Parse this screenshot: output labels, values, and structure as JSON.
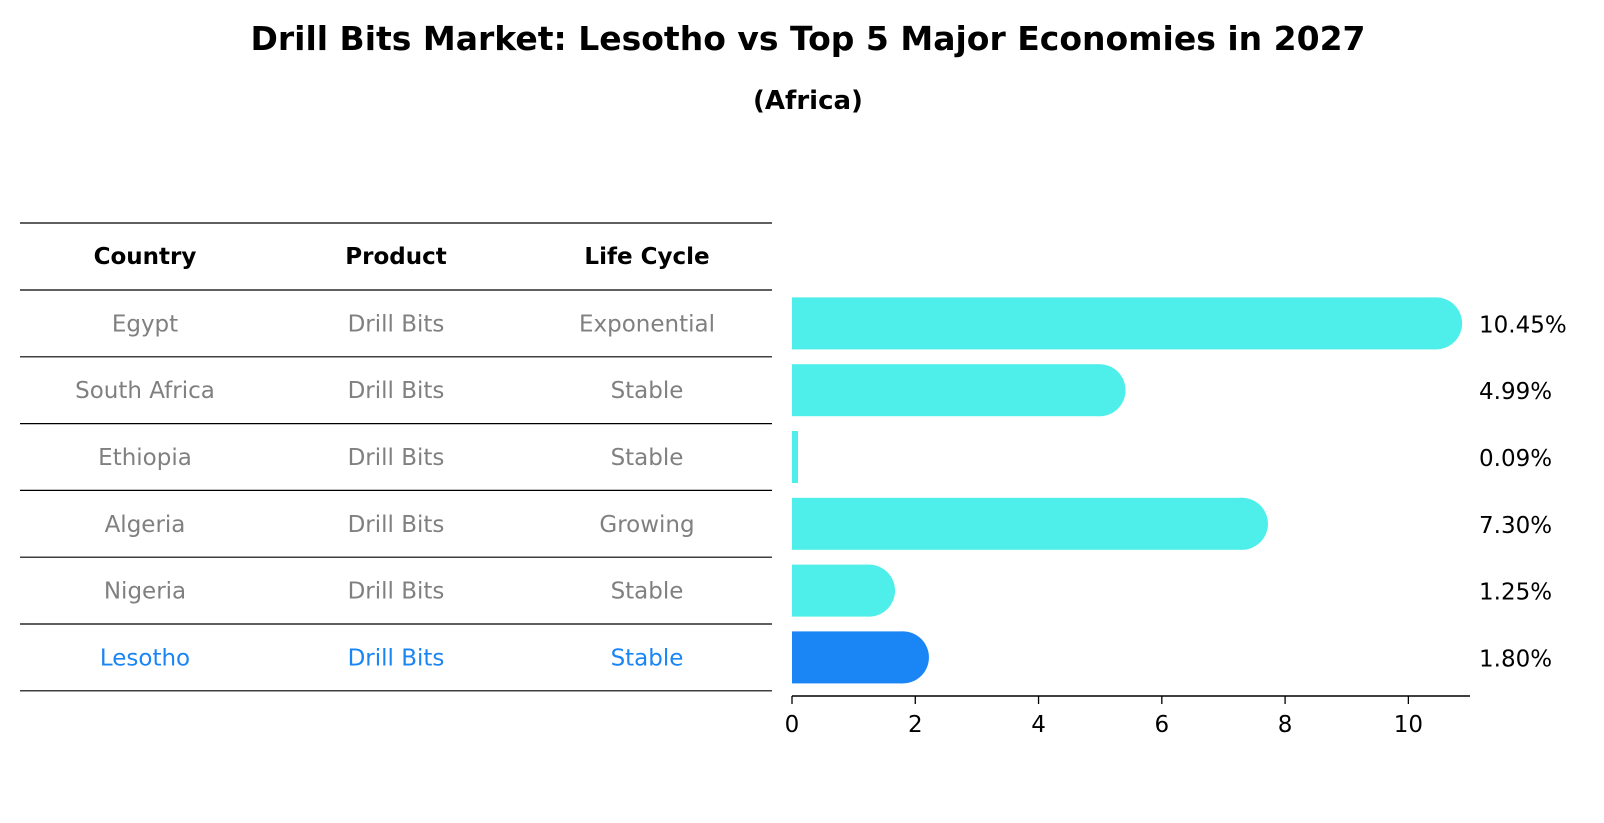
{
  "chart_data": {
    "type": "bar",
    "orientation": "horizontal",
    "title": "Drill Bits Market: Lesotho vs Top 5 Major Economies in 2027",
    "subtitle": "(Africa)",
    "table": {
      "columns": [
        "Country",
        "Product",
        "Life Cycle"
      ],
      "rows": [
        {
          "country": "Egypt",
          "product": "Drill Bits",
          "life_cycle": "Exponential",
          "highlight": false
        },
        {
          "country": "South Africa",
          "product": "Drill Bits",
          "life_cycle": "Stable",
          "highlight": false
        },
        {
          "country": "Ethiopia",
          "product": "Drill Bits",
          "life_cycle": "Stable",
          "highlight": false
        },
        {
          "country": "Algeria",
          "product": "Drill Bits",
          "life_cycle": "Growing",
          "highlight": false
        },
        {
          "country": "Nigeria",
          "product": "Drill Bits",
          "life_cycle": "Stable",
          "highlight": false
        },
        {
          "country": "Lesotho",
          "product": "Drill Bits",
          "life_cycle": "Stable",
          "highlight": true
        }
      ]
    },
    "categories": [
      "Egypt",
      "South Africa",
      "Ethiopia",
      "Algeria",
      "Nigeria",
      "Lesotho"
    ],
    "values": [
      10.45,
      4.99,
      0.09,
      7.3,
      1.25,
      1.8
    ],
    "value_labels": [
      "10.45%",
      "4.99%",
      "0.09%",
      "7.30%",
      "1.25%",
      "1.80%"
    ],
    "xlim": [
      0,
      11
    ],
    "xticks": [
      0,
      2,
      4,
      6,
      8,
      10
    ],
    "xlabel": "",
    "ylabel": "",
    "grid": false,
    "colors": {
      "bar": "#4EEEEA",
      "highlight_bar": "#1A85F5",
      "row_text": "#808080",
      "highlight_text": "#1A85F5",
      "header_text": "#000000",
      "line": "#000000"
    }
  }
}
